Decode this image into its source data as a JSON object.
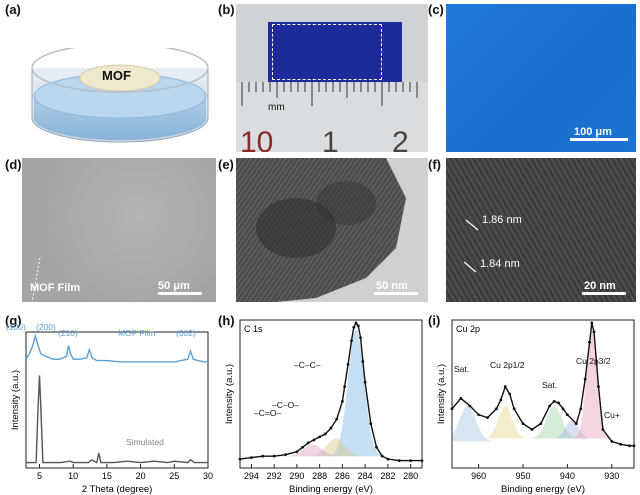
{
  "panels": {
    "a": {
      "label": "(a)",
      "text": "MOF"
    },
    "b": {
      "label": "(b)",
      "ruler_unit": "mm",
      "ruler_digits": [
        "10",
        "1",
        "2"
      ]
    },
    "c": {
      "label": "(c)",
      "scale": "100 μm",
      "color": "#1e78d6"
    },
    "d": {
      "label": "(d)",
      "scale": "50 μm",
      "text": "MOF Film"
    },
    "e": {
      "label": "(e)",
      "scale": "50 nm"
    },
    "f": {
      "label": "(f)",
      "scale": "20 nm",
      "spacing1": "1.86 nm",
      "spacing2": "1.84 nm"
    },
    "g": {
      "label": "(g)"
    },
    "h": {
      "label": "(h)"
    },
    "i": {
      "label": "(i)"
    }
  },
  "chart_data": [
    {
      "type": "line",
      "panel": "g",
      "xlabel": "2 Theta (degree)",
      "ylabel": "Intensity (a.u.)",
      "xlim": [
        3,
        30
      ],
      "xticks": [
        "5",
        "10",
        "15",
        "20",
        "25",
        "30"
      ],
      "series": [
        {
          "name": "MOF Film",
          "color": "#5aa0d8",
          "x": [
            3,
            3.5,
            4,
            4.4,
            4.8,
            5.2,
            6,
            7,
            8,
            9,
            9.3,
            9.6,
            10,
            11,
            12,
            12.4,
            12.8,
            13.5,
            15,
            17,
            19,
            21,
            23,
            25,
            26,
            27,
            27.4,
            27.8,
            28.5,
            29.5,
            30
          ],
          "y": [
            0.8,
            0.84,
            0.9,
            0.97,
            0.9,
            0.84,
            0.82,
            0.8,
            0.8,
            0.82,
            0.9,
            0.84,
            0.8,
            0.8,
            0.81,
            0.87,
            0.81,
            0.79,
            0.79,
            0.78,
            0.78,
            0.78,
            0.78,
            0.78,
            0.79,
            0.8,
            0.86,
            0.8,
            0.79,
            0.78,
            0.78
          ]
        },
        {
          "name": "Simulated",
          "color": "#555555",
          "x": [
            3,
            4.5,
            4.8,
            5.0,
            5.2,
            5.5,
            8,
            9.6,
            10,
            12.3,
            12.7,
            13.5,
            13.8,
            14.1,
            16,
            18,
            20,
            22,
            24,
            25,
            27,
            27.4,
            28,
            30
          ],
          "y": [
            0.04,
            0.04,
            0.45,
            0.68,
            0.45,
            0.04,
            0.04,
            0.05,
            0.04,
            0.04,
            0.06,
            0.04,
            0.11,
            0.04,
            0.04,
            0.05,
            0.04,
            0.05,
            0.04,
            0.05,
            0.04,
            0.06,
            0.04,
            0.04
          ]
        }
      ],
      "annotations": [
        "(100)",
        "(200)",
        "(210)",
        "(002)"
      ]
    },
    {
      "type": "line",
      "panel": "h",
      "title": "C 1s",
      "xlabel": "Binding energy (eV)",
      "ylabel": "Intensity (a.u.)",
      "xlim": [
        295,
        279
      ],
      "xticks": [
        "294",
        "292",
        "290",
        "288",
        "286",
        "284",
        "282",
        "280"
      ],
      "series": [
        {
          "name": "data",
          "color": "#111111",
          "x": [
            295,
            294,
            293,
            292,
            291,
            290,
            289.5,
            289,
            288.5,
            288,
            287.5,
            287,
            286.5,
            286,
            285.8,
            285.5,
            285.2,
            285,
            284.8,
            284.6,
            284.4,
            284.2,
            284,
            283.5,
            283,
            282.5,
            282,
            281,
            280,
            279
          ],
          "y": [
            0.06,
            0.07,
            0.08,
            0.08,
            0.09,
            0.11,
            0.14,
            0.17,
            0.19,
            0.21,
            0.23,
            0.27,
            0.33,
            0.45,
            0.55,
            0.7,
            0.86,
            0.95,
            0.98,
            0.96,
            0.88,
            0.72,
            0.58,
            0.3,
            0.14,
            0.08,
            0.06,
            0.05,
            0.05,
            0.05
          ]
        }
      ],
      "annotations": [
        "–C–C–",
        "–C–O–",
        "–C=O–"
      ]
    },
    {
      "type": "line",
      "panel": "i",
      "title": "Cu 2p",
      "xlabel": "Binding energy (eV)",
      "ylabel": "Intensity (a.u.)",
      "xlim": [
        966,
        925
      ],
      "xticks": [
        "960",
        "950",
        "940",
        "930"
      ],
      "series": [
        {
          "name": "data",
          "color": "#111111",
          "x": [
            966,
            964,
            962,
            960,
            958,
            956,
            955,
            954,
            953,
            952,
            950,
            948,
            946,
            944,
            943,
            942,
            941,
            940,
            938,
            937,
            936,
            935,
            934.5,
            934,
            933,
            932,
            930,
            928,
            926,
            925
          ],
          "y": [
            0.4,
            0.47,
            0.42,
            0.36,
            0.34,
            0.4,
            0.46,
            0.55,
            0.5,
            0.4,
            0.3,
            0.26,
            0.3,
            0.42,
            0.45,
            0.44,
            0.4,
            0.36,
            0.3,
            0.4,
            0.6,
            0.85,
            0.98,
            0.92,
            0.55,
            0.26,
            0.18,
            0.16,
            0.15,
            0.15
          ]
        }
      ],
      "annotations": [
        "Sat.",
        "Cu 2p1/2",
        "Sat.",
        "Cu 2p3/2",
        "Cu+"
      ]
    }
  ]
}
